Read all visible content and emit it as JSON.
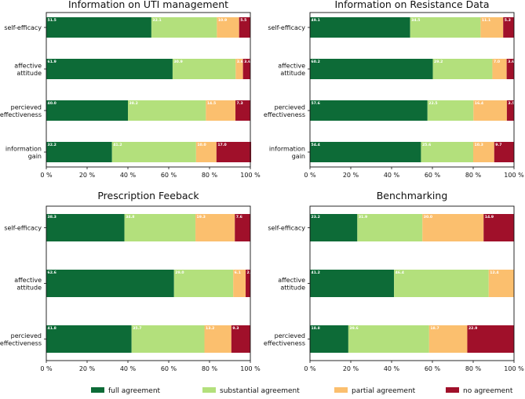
{
  "colors": {
    "full agreement": "#0d6b37",
    "substantial agreement": "#b3e07c",
    "partial agreement": "#fbbf6e",
    "no agreement": "#a0102a"
  },
  "legend": [
    "full agreement",
    "substantial agreement",
    "partial agreement",
    "no agreement"
  ],
  "chart_data": [
    {
      "type": "bar",
      "orientation": "horizontal",
      "stacked": true,
      "title": "Information on UTI management",
      "categories": [
        "self-efficacy",
        "affective\nattitude",
        "percieved\neffectiveness",
        "information\ngain"
      ],
      "series": [
        {
          "name": "full agreement",
          "values": [
            51.5,
            61.9,
            40.0,
            32.2
          ]
        },
        {
          "name": "substantial agreement",
          "values": [
            32.1,
            30.9,
            38.2,
            41.2
          ]
        },
        {
          "name": "partial agreement",
          "values": [
            10.9,
            3.6,
            14.5,
            10.0
          ]
        },
        {
          "name": "no agreement",
          "values": [
            5.5,
            3.6,
            7.3,
            17.0
          ]
        }
      ],
      "labels": [
        [
          "51.5",
          "61.9",
          "40.0",
          "32.2"
        ],
        [
          "32.1",
          "30.9",
          "38.2",
          "41.2"
        ],
        [
          "10.9",
          "3.6",
          "14.5",
          "10.0"
        ],
        [
          "5.5",
          "3.6",
          "7.3",
          "17.0"
        ]
      ],
      "xlim": [
        0,
        100
      ],
      "xticks": [
        "0 %",
        "20 %",
        "40 %",
        "60 %",
        "80 %",
        "100 %"
      ]
    },
    {
      "type": "bar",
      "orientation": "horizontal",
      "stacked": true,
      "title": "Information on Resistance Data",
      "categories": [
        "self-efficacy",
        "affective\nattitude",
        "percieved\neffectiveness",
        "information\ngain"
      ],
      "series": [
        {
          "name": "full agreement",
          "values": [
            49.1,
            60.2,
            57.6,
            54.4
          ]
        },
        {
          "name": "substantial agreement",
          "values": [
            34.5,
            29.2,
            22.5,
            25.6
          ]
        },
        {
          "name": "partial agreement",
          "values": [
            11.1,
            7.0,
            16.4,
            10.3
          ]
        },
        {
          "name": "no agreement",
          "values": [
            5.3,
            3.6,
            3.5,
            9.7
          ]
        }
      ],
      "labels": [
        [
          "49.1",
          "60.2",
          "57.6",
          "54.4"
        ],
        [
          "34.5",
          "29.2",
          "22.5",
          "25.6"
        ],
        [
          "11.1",
          "7.0",
          "16.4",
          "10.3"
        ],
        [
          "5.3",
          "3.6",
          "3.5",
          "9.7"
        ]
      ],
      "xlim": [
        0,
        100
      ],
      "xticks": [
        "0 %",
        "20 %",
        "40 %",
        "60 %",
        "80 %",
        "100 %"
      ]
    },
    {
      "type": "bar",
      "orientation": "horizontal",
      "stacked": true,
      "title": "Prescription Feeback",
      "categories": [
        "self-efficacy",
        "affective\nattitude",
        "percieved\neffectiveness"
      ],
      "series": [
        {
          "name": "full agreement",
          "values": [
            38.3,
            62.6,
            41.8
          ]
        },
        {
          "name": "substantial agreement",
          "values": [
            34.8,
            29.0,
            35.7
          ]
        },
        {
          "name": "partial agreement",
          "values": [
            19.3,
            6.1,
            13.2
          ]
        },
        {
          "name": "no agreement",
          "values": [
            7.6,
            2.3,
            9.3
          ]
        }
      ],
      "labels": [
        [
          "38.3",
          "62.6",
          "41.8"
        ],
        [
          "34.8",
          "29.0",
          "35.7"
        ],
        [
          "19.3",
          "6.1",
          "13.2"
        ],
        [
          "7.6",
          "2.3",
          "9.3"
        ]
      ],
      "xlim": [
        0,
        100
      ],
      "xticks": [
        "0 %",
        "20 %",
        "40 %",
        "60 %",
        "80 %",
        "100 %"
      ]
    },
    {
      "type": "bar",
      "orientation": "horizontal",
      "stacked": true,
      "title": "Benchmarking",
      "categories": [
        "self-efficacy",
        "affective\nattitude",
        "percieved\neffectiveness"
      ],
      "series": [
        {
          "name": "full agreement",
          "values": [
            23.2,
            41.2,
            18.8
          ]
        },
        {
          "name": "substantial agreement",
          "values": [
            31.9,
            46.4,
            39.6
          ]
        },
        {
          "name": "partial agreement",
          "values": [
            30.0,
            12.4,
            18.7
          ]
        },
        {
          "name": "no agreement",
          "values": [
            14.9,
            0,
            22.9
          ]
        }
      ],
      "labels": [
        [
          "23.2",
          "41.2",
          "18.8"
        ],
        [
          "31.9",
          "46.4",
          "39.6"
        ],
        [
          "30.0",
          "12.4",
          "18.7"
        ],
        [
          "14.9",
          "",
          "22.9"
        ]
      ],
      "xlim": [
        0,
        100
      ],
      "xticks": [
        "0 %",
        "20 %",
        "40 %",
        "60 %",
        "80 %",
        "100 %"
      ]
    }
  ]
}
